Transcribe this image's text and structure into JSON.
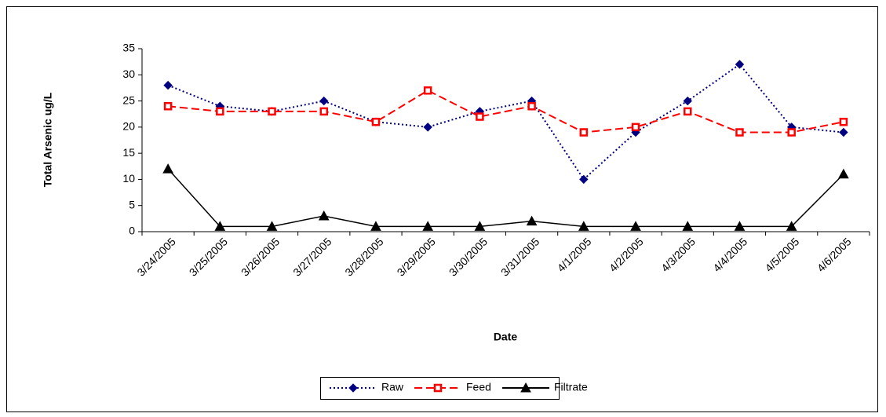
{
  "chart_data": {
    "type": "line",
    "y_label": "Total Arsenic ug/L",
    "x_label": "Date",
    "categories": [
      "3/24/2005",
      "3/25/2005",
      "3/26/2005",
      "3/27/2005",
      "3/28/2005",
      "3/29/2005",
      "3/30/2005",
      "3/31/2005",
      "4/1/2005",
      "4/2/2005",
      "4/3/2005",
      "4/4/2005",
      "4/5/2005",
      "4/6/2005"
    ],
    "series": [
      {
        "name": "Raw",
        "color": "#000080",
        "dash": "dotted",
        "marker": "diamond",
        "values": [
          28,
          24,
          23,
          25,
          21,
          20,
          23,
          25,
          10,
          19,
          25,
          32,
          20,
          19
        ]
      },
      {
        "name": "Feed",
        "color": "#ff0000",
        "dash": "dashed",
        "marker": "square",
        "values": [
          24,
          23,
          23,
          23,
          21,
          27,
          22,
          24,
          19,
          20,
          23,
          19,
          19,
          21
        ]
      },
      {
        "name": "Filtrate",
        "color": "#000000",
        "dash": "solid",
        "marker": "triangle",
        "values": [
          12,
          1,
          1,
          3,
          1,
          1,
          1,
          2,
          1,
          1,
          1,
          1,
          1,
          11
        ]
      }
    ],
    "ylim": [
      0,
      35
    ],
    "yticks": [
      0,
      5,
      10,
      15,
      20,
      25,
      30,
      35
    ],
    "legend": "bottom"
  }
}
